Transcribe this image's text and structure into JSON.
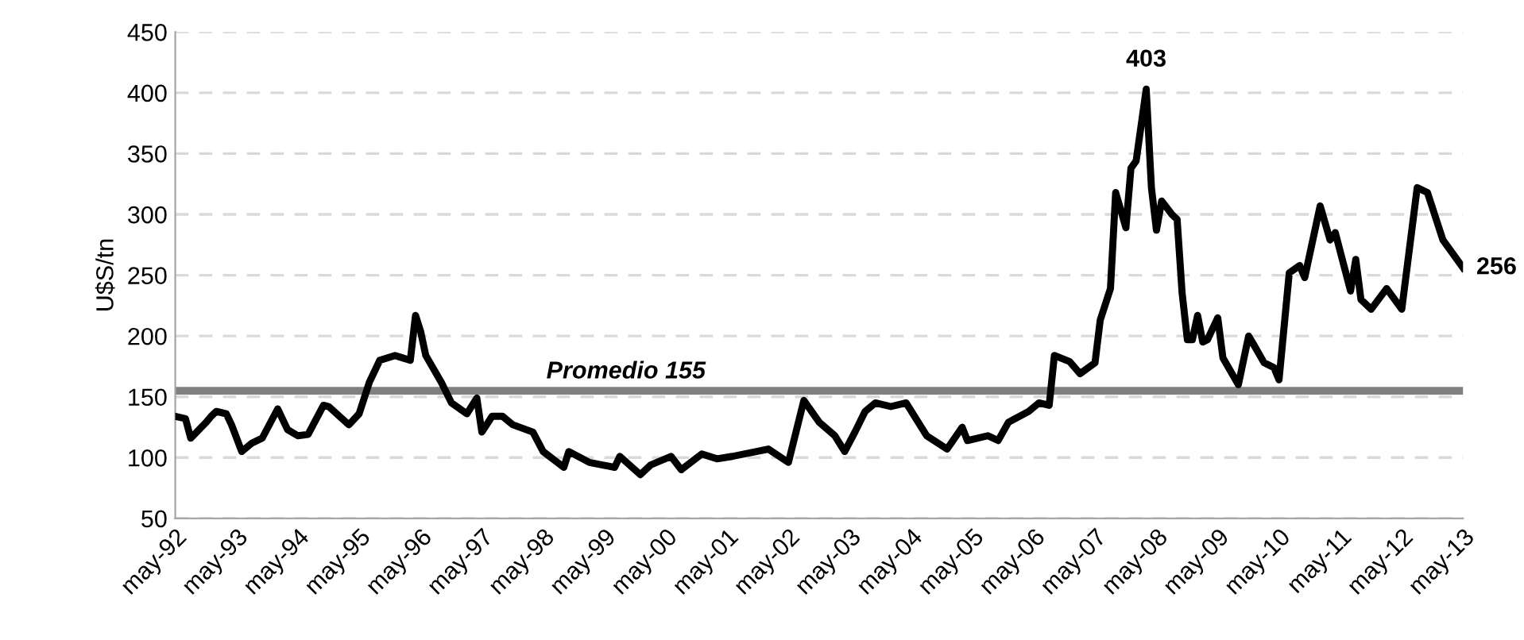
{
  "chart_data": {
    "type": "line",
    "ylabel": "U$S/tn",
    "x": [
      "1992-05",
      "1992-07",
      "1992-08",
      "1992-11",
      "1992-12",
      "1993-01",
      "1993-03",
      "1993-04",
      "1993-06",
      "1993-08",
      "1993-10",
      "1994-01",
      "1994-03",
      "1994-05",
      "1994-07",
      "1994-10",
      "1994-11",
      "1995-03",
      "1995-05",
      "1995-07",
      "1995-09",
      "1995-12",
      "1996-03",
      "1996-04",
      "1996-05",
      "1996-06",
      "1996-09",
      "1996-11",
      "1997-02",
      "1997-04",
      "1997-05",
      "1997-07",
      "1997-09",
      "1997-11",
      "1998-03",
      "1998-05",
      "1998-09",
      "1998-10",
      "1999-02",
      "1999-07",
      "1999-08",
      "1999-12",
      "2000-02",
      "2000-06",
      "2000-08",
      "2000-12",
      "2001-03",
      "2001-06",
      "2002-01",
      "2002-05",
      "2002-08",
      "2002-11",
      "2003-02",
      "2003-04",
      "2003-06",
      "2003-08",
      "2003-10",
      "2004-01",
      "2004-04",
      "2004-08",
      "2004-12",
      "2005-03",
      "2005-04",
      "2005-08",
      "2005-10",
      "2005-12",
      "2006-04",
      "2006-06",
      "2006-08",
      "2006-09",
      "2006-12",
      "2007-02",
      "2007-05",
      "2007-06",
      "2007-08",
      "2007-09",
      "2007-11",
      "2007-12",
      "2008-01",
      "2008-03",
      "2008-04",
      "2008-05",
      "2008-06",
      "2008-08",
      "2008-09",
      "2008-10",
      "2008-11",
      "2008-12",
      "2009-01",
      "2009-02",
      "2009-03",
      "2009-05",
      "2009-06",
      "2009-09",
      "2009-11",
      "2009-12",
      "2010-02",
      "2010-04",
      "2010-05",
      "2010-07",
      "2010-09",
      "2010-10",
      "2011-01",
      "2011-03",
      "2011-04",
      "2011-07",
      "2011-08",
      "2011-09",
      "2011-11",
      "2012-02",
      "2012-05",
      "2012-08",
      "2012-10",
      "2013-01",
      "2013-05"
    ],
    "series": [
      {
        "color": "#000000",
        "values": [
          134,
          132,
          116,
          129,
          134,
          138,
          136,
          127,
          105,
          112,
          116,
          140,
          123,
          118,
          119,
          143,
          142,
          127,
          136,
          162,
          180,
          184,
          180,
          217,
          204,
          184,
          162,
          145,
          136,
          149,
          121,
          134,
          134,
          127,
          121,
          105,
          92,
          105,
          96,
          92,
          101,
          86,
          94,
          101,
          90,
          103,
          99,
          101,
          107,
          96,
          147,
          129,
          118,
          105,
          121,
          138,
          145,
          142,
          145,
          118,
          107,
          125,
          114,
          118,
          114,
          129,
          138,
          145,
          143,
          184,
          179,
          169,
          178,
          213,
          239,
          318,
          289,
          338,
          344,
          403,
          322,
          287,
          311,
          300,
          296,
          235,
          197,
          197,
          217,
          195,
          197,
          215,
          182,
          160,
          200,
          193,
          178,
          174,
          164,
          252,
          258,
          248,
          307,
          279,
          285,
          237,
          263,
          230,
          222,
          239,
          222,
          322,
          318,
          279,
          256
        ]
      }
    ],
    "xlim": [
      "1992-05",
      "2013-05"
    ],
    "xticks": [
      {
        "value": "1992-05",
        "label": "may-92"
      },
      {
        "value": "1993-05",
        "label": "may-93"
      },
      {
        "value": "1994-05",
        "label": "may-94"
      },
      {
        "value": "1995-05",
        "label": "may-95"
      },
      {
        "value": "1996-05",
        "label": "may-96"
      },
      {
        "value": "1997-05",
        "label": "may-97"
      },
      {
        "value": "1998-05",
        "label": "may-98"
      },
      {
        "value": "1999-05",
        "label": "may-99"
      },
      {
        "value": "2000-05",
        "label": "may-00"
      },
      {
        "value": "2001-05",
        "label": "may-01"
      },
      {
        "value": "2002-05",
        "label": "may-02"
      },
      {
        "value": "2003-05",
        "label": "may-03"
      },
      {
        "value": "2004-05",
        "label": "may-04"
      },
      {
        "value": "2005-05",
        "label": "may-05"
      },
      {
        "value": "2006-05",
        "label": "may-06"
      },
      {
        "value": "2007-05",
        "label": "may-07"
      },
      {
        "value": "2008-05",
        "label": "may-08"
      },
      {
        "value": "2009-05",
        "label": "may-09"
      },
      {
        "value": "2010-05",
        "label": "may-10"
      },
      {
        "value": "2011-05",
        "label": "may-11"
      },
      {
        "value": "2012-05",
        "label": "may-12"
      },
      {
        "value": "2013-05",
        "label": "may-13"
      }
    ],
    "ylim": [
      50,
      450
    ],
    "yticks": [
      50,
      100,
      150,
      200,
      250,
      300,
      350,
      400,
      450
    ],
    "grid": "y",
    "line_style": "solid",
    "ref_lines": [
      {
        "axis": "y",
        "value": 155,
        "label": "Promedio 155",
        "color": "#808080"
      }
    ],
    "annotations": [
      {
        "text": "403",
        "x": "2008-03",
        "y": 403
      },
      {
        "text": "256",
        "x": "2013-05",
        "y": 256
      }
    ]
  }
}
